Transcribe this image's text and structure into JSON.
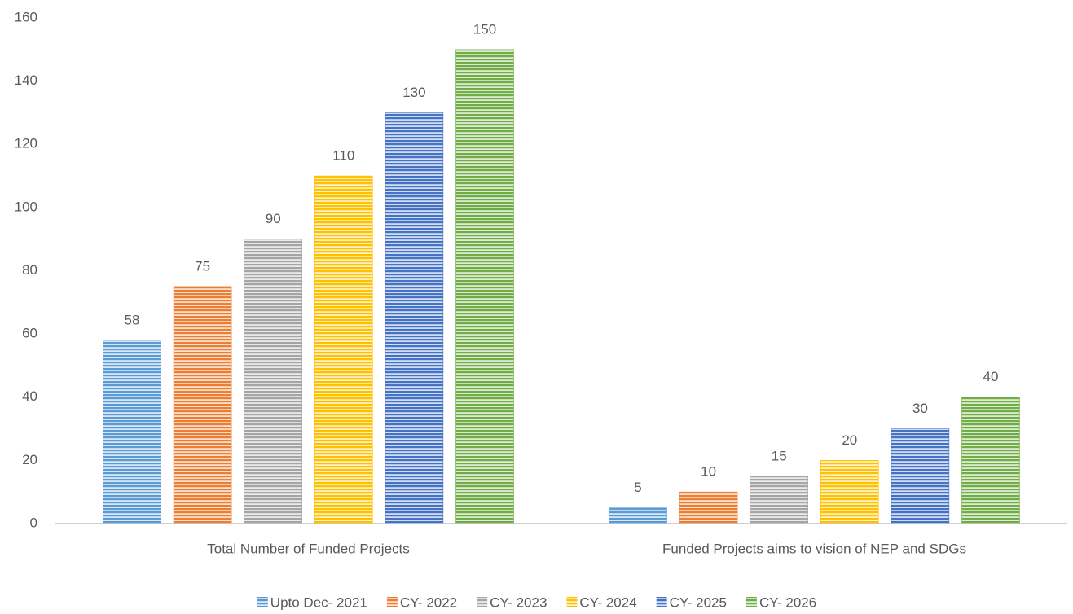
{
  "chart_data": {
    "type": "bar",
    "categories": [
      "Total Number of Funded Projects",
      "Funded Projects aims to vision of NEP and SDGs"
    ],
    "series": [
      {
        "name": "Upto Dec- 2021",
        "color": "#5b9bd5",
        "values": [
          58,
          5
        ]
      },
      {
        "name": "CY- 2022",
        "color": "#ed7d31",
        "values": [
          75,
          10
        ]
      },
      {
        "name": "CY- 2023",
        "color": "#a5a5a5",
        "values": [
          90,
          15
        ]
      },
      {
        "name": "CY- 2024",
        "color": "#ffc000",
        "values": [
          110,
          20
        ]
      },
      {
        "name": "CY- 2025",
        "color": "#4472c4",
        "values": [
          130,
          30
        ]
      },
      {
        "name": "CY- 2026",
        "color": "#70ad47",
        "values": [
          150,
          40
        ]
      }
    ],
    "ylim": [
      0,
      160
    ],
    "yticks": [
      0,
      20,
      40,
      60,
      80,
      100,
      120,
      140,
      160
    ],
    "grid": false,
    "legend": "bottom"
  }
}
